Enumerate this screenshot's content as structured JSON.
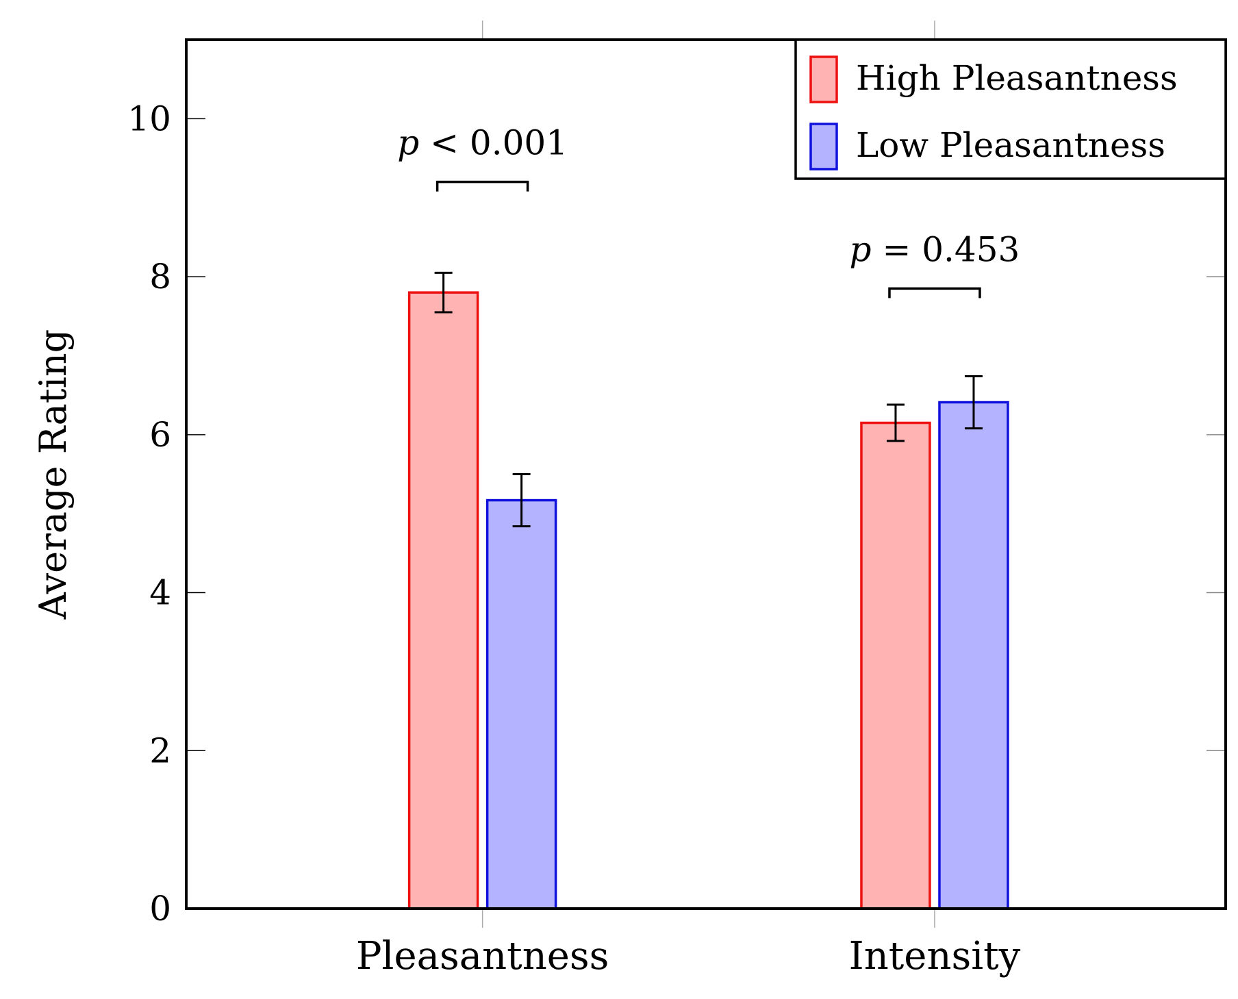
{
  "chart_data": {
    "type": "bar",
    "title": "",
    "xlabel": "",
    "ylabel": "Average Rating",
    "ylim": [
      0,
      11
    ],
    "yticks": [
      0,
      2,
      4,
      6,
      8,
      10
    ],
    "categories": [
      "Pleasantness",
      "Intensity"
    ],
    "series": [
      {
        "name": "High Pleasantness",
        "values": [
          7.8,
          6.15
        ],
        "errors": [
          0.25,
          0.23
        ],
        "fill": "#ffb3b3",
        "stroke": "#ee1111"
      },
      {
        "name": "Low Pleasantness",
        "values": [
          5.17,
          6.41
        ],
        "errors": [
          0.33,
          0.33
        ],
        "fill": "#b3b3ff",
        "stroke": "#1111dd"
      }
    ],
    "legend_position": "top-right",
    "annotations": [
      {
        "category": 0,
        "p_symbol": "p",
        "p_relation": "<",
        "p_value": "0.001",
        "bracket_y": 9.2
      },
      {
        "category": 1,
        "p_symbol": "p",
        "p_relation": "=",
        "p_value": "0.453",
        "bracket_y": 7.85
      }
    ]
  }
}
